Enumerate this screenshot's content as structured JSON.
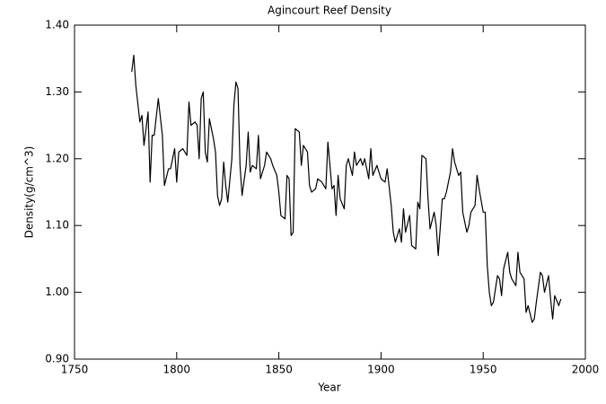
{
  "chart_data": {
    "type": "line",
    "title": "Agincourt Reef Density",
    "xlabel": "Year",
    "ylabel": "Density(g/cm^3)",
    "xlim": [
      1750,
      2000
    ],
    "xticks": [
      1750,
      1800,
      1850,
      1900,
      1950,
      2000
    ],
    "ylim": [
      0.9,
      1.4
    ],
    "yticks": [
      {
        "value": 0.9,
        "label": "0.90"
      },
      {
        "value": 1.0,
        "label": "1.00"
      },
      {
        "value": 1.1,
        "label": "1.10"
      },
      {
        "value": 1.2,
        "label": "1.20"
      },
      {
        "value": 1.3,
        "label": "1.30"
      },
      {
        "value": 1.4,
        "label": "1.40"
      }
    ],
    "color": "#000000",
    "x": [
      1778,
      1779,
      1780,
      1782,
      1783,
      1784,
      1786,
      1787,
      1788,
      1789,
      1791,
      1793,
      1794,
      1796,
      1797,
      1799,
      1800,
      1801,
      1803,
      1805,
      1806,
      1807,
      1809,
      1810,
      1811,
      1812,
      1813,
      1814,
      1815,
      1816,
      1818,
      1819,
      1820,
      1821,
      1822,
      1823,
      1824,
      1825,
      1827,
      1828,
      1829,
      1830,
      1831,
      1832,
      1834,
      1835,
      1836,
      1837,
      1839,
      1840,
      1841,
      1843,
      1844,
      1846,
      1847,
      1849,
      1850,
      1851,
      1853,
      1854,
      1855,
      1856,
      1857,
      1858,
      1860,
      1861,
      1862,
      1864,
      1865,
      1866,
      1868,
      1869,
      1871,
      1873,
      1874,
      1876,
      1877,
      1878,
      1879,
      1880,
      1882,
      1883,
      1884,
      1886,
      1887,
      1888,
      1890,
      1891,
      1892,
      1894,
      1895,
      1896,
      1898,
      1899,
      1900,
      1902,
      1903,
      1905,
      1906,
      1907,
      1909,
      1910,
      1911,
      1912,
      1914,
      1915,
      1917,
      1918,
      1919,
      1920,
      1922,
      1923,
      1924,
      1926,
      1927,
      1928,
      1930,
      1931,
      1932,
      1934,
      1935,
      1936,
      1938,
      1939,
      1940,
      1942,
      1943,
      1944,
      1946,
      1947,
      1948,
      1950,
      1951,
      1952,
      1953,
      1954,
      1955,
      1957,
      1958,
      1959,
      1960,
      1962,
      1963,
      1964,
      1966,
      1967,
      1968,
      1970,
      1971,
      1972,
      1974,
      1975,
      1976,
      1978,
      1979,
      1980,
      1982,
      1983,
      1984,
      1985,
      1987,
      1988
    ],
    "values": [
      1.33,
      1.355,
      1.31,
      1.255,
      1.265,
      1.22,
      1.27,
      1.165,
      1.235,
      1.235,
      1.29,
      1.235,
      1.16,
      1.185,
      1.185,
      1.215,
      1.165,
      1.21,
      1.215,
      1.205,
      1.285,
      1.25,
      1.255,
      1.25,
      1.2,
      1.29,
      1.3,
      1.21,
      1.195,
      1.26,
      1.23,
      1.21,
      1.145,
      1.13,
      1.14,
      1.195,
      1.16,
      1.135,
      1.2,
      1.28,
      1.315,
      1.305,
      1.19,
      1.145,
      1.19,
      1.24,
      1.18,
      1.19,
      1.185,
      1.235,
      1.17,
      1.19,
      1.21,
      1.2,
      1.19,
      1.175,
      1.15,
      1.115,
      1.11,
      1.175,
      1.17,
      1.085,
      1.09,
      1.245,
      1.24,
      1.19,
      1.22,
      1.21,
      1.16,
      1.15,
      1.155,
      1.17,
      1.165,
      1.155,
      1.225,
      1.155,
      1.16,
      1.115,
      1.175,
      1.14,
      1.125,
      1.19,
      1.2,
      1.175,
      1.21,
      1.19,
      1.2,
      1.19,
      1.2,
      1.17,
      1.215,
      1.175,
      1.19,
      1.18,
      1.17,
      1.165,
      1.185,
      1.13,
      1.09,
      1.075,
      1.095,
      1.075,
      1.125,
      1.09,
      1.115,
      1.07,
      1.065,
      1.135,
      1.125,
      1.205,
      1.2,
      1.14,
      1.095,
      1.12,
      1.1,
      1.055,
      1.14,
      1.14,
      1.15,
      1.18,
      1.215,
      1.195,
      1.175,
      1.18,
      1.12,
      1.09,
      1.1,
      1.12,
      1.13,
      1.175,
      1.155,
      1.12,
      1.12,
      1.04,
      1.0,
      0.98,
      0.985,
      1.025,
      1.02,
      0.995,
      1.035,
      1.06,
      1.03,
      1.02,
      1.01,
      1.06,
      1.03,
      1.02,
      0.97,
      0.98,
      0.955,
      0.96,
      0.985,
      1.03,
      1.025,
      1.0,
      1.025,
      0.99,
      0.96,
      0.995,
      0.98,
      0.99
    ]
  }
}
